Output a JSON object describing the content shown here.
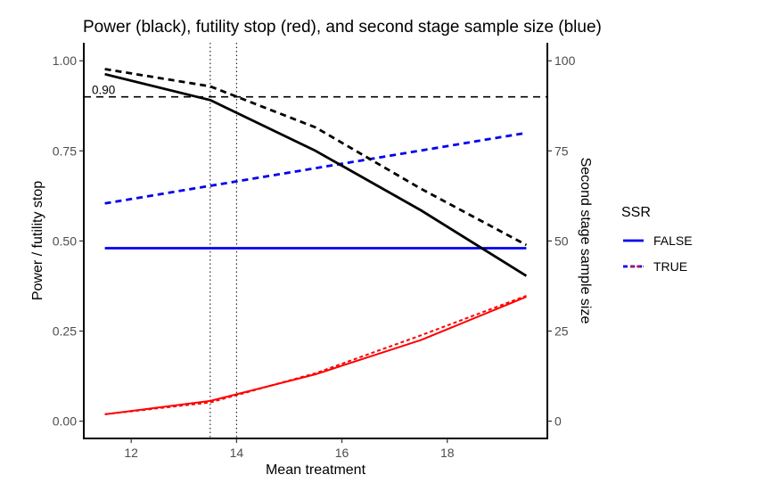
{
  "chart_data": {
    "type": "line",
    "title": "Power (black), futility stop (red), and second stage sample size (blue)",
    "xlabel": "Mean treatment",
    "ylabel": "Power / futility stop",
    "y2label": "Second stage sample size",
    "xlim": [
      11.1,
      19.9
    ],
    "ylim": [
      -0.048,
      1.05
    ],
    "y2_scale_factor": 100,
    "x_ticks": [
      12,
      14,
      16,
      18
    ],
    "y_ticks": [
      0.0,
      0.25,
      0.5,
      0.75,
      1.0
    ],
    "y_tick_labels": [
      "0.00",
      "0.25",
      "0.50",
      "0.75",
      "1.00"
    ],
    "y2_ticks": [
      0,
      25,
      50,
      75,
      100
    ],
    "grid": false,
    "x": [
      11.5,
      13.5,
      15.5,
      17.5,
      19.5
    ],
    "series": [
      {
        "name": "Power, SSR=FALSE",
        "metric": "power",
        "ssr": "FALSE",
        "color": "#000000",
        "dashed": false,
        "axis": "left",
        "values": [
          0.963,
          0.891,
          0.75,
          0.585,
          0.403
        ]
      },
      {
        "name": "Power, SSR=TRUE",
        "metric": "power",
        "ssr": "TRUE",
        "color": "#000000",
        "dashed": true,
        "axis": "left",
        "values": [
          0.977,
          0.929,
          0.815,
          0.645,
          0.489
        ]
      },
      {
        "name": "Futility stop, SSR=FALSE",
        "metric": "futility",
        "ssr": "FALSE",
        "color": "#ff0000",
        "dashed": false,
        "axis": "left",
        "values": [
          0.019,
          0.056,
          0.13,
          0.225,
          0.345
        ]
      },
      {
        "name": "Futility stop, SSR=TRUE",
        "metric": "futility",
        "ssr": "TRUE",
        "color": "#ff0000",
        "dashed": true,
        "axis": "left",
        "values": [
          0.019,
          0.052,
          0.133,
          0.238,
          0.348
        ]
      },
      {
        "name": "Second stage sample size, SSR=FALSE",
        "metric": "sample_size",
        "ssr": "FALSE",
        "color": "#0000ee",
        "dashed": false,
        "axis": "right",
        "values": [
          48,
          48,
          48,
          48,
          48
        ]
      },
      {
        "name": "Second stage sample size, SSR=TRUE",
        "metric": "sample_size",
        "ssr": "TRUE",
        "color": "#0000ee",
        "dashed": true,
        "axis": "right",
        "values": [
          60.4,
          65.3,
          70.2,
          75.1,
          80.0
        ]
      }
    ],
    "reference_lines": {
      "horizontal": {
        "y": 0.9,
        "label": "0.90",
        "style": "dashed"
      },
      "vertical": [
        {
          "x": 13.5,
          "style": "dotted"
        },
        {
          "x": 14.0,
          "style": "dotted"
        }
      ]
    },
    "legend": {
      "title": "SSR",
      "position": "right",
      "entries": [
        {
          "label": "FALSE",
          "dashed": false,
          "colors": [
            "#0000ee"
          ]
        },
        {
          "label": "TRUE",
          "dashed": true,
          "colors": [
            "#0000ee",
            "#ff0000"
          ]
        }
      ]
    }
  }
}
